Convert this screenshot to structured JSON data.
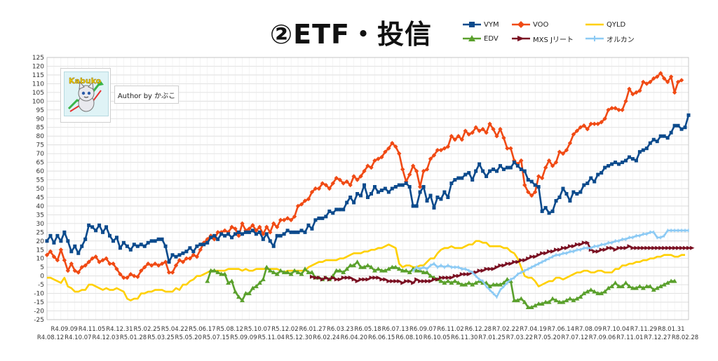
{
  "title": "②ETF・投信",
  "author_label": "Author by かぶこ",
  "logo_text": "Kabuko",
  "legend": [
    {
      "name": "VYM",
      "color": "#0b4a8c",
      "marker": "square"
    },
    {
      "name": "VOO",
      "color": "#f04a14",
      "marker": "diamond"
    },
    {
      "name": "QYLD",
      "color": "#ffd000",
      "marker": "none"
    },
    {
      "name": "EDV",
      "color": "#5aa02c",
      "marker": "triangle"
    },
    {
      "name": "MXS Jリート",
      "color": "#7a1022",
      "marker": "arrow"
    },
    {
      "name": "オルカン",
      "color": "#8ccaf4",
      "marker": "plus"
    }
  ],
  "chart_data": {
    "type": "line",
    "title": "②ETF・投信",
    "xlabel": "",
    "ylabel": "",
    "ylim": [
      -25,
      125
    ],
    "yticks": [
      125,
      120,
      115,
      110,
      105,
      100,
      95,
      90,
      85,
      80,
      75,
      70,
      65,
      60,
      55,
      50,
      45,
      40,
      35,
      30,
      25,
      20,
      15,
      10,
      5,
      0,
      -5,
      -10,
      -15,
      -20,
      -25
    ],
    "grid": true,
    "legend_position": "top-right",
    "x_labels_row1": [
      "R4.09.09",
      "R4.11.05",
      "R4.12.31",
      "R5.02.25",
      "R5.04.22",
      "R5.06.17",
      "R5.08.12",
      "R5.10.07",
      "R5.12.02",
      "R6.01.27",
      "R6.03.23",
      "R6.05.18",
      "R6.07.13",
      "R6.09.07",
      "R6.11.02",
      "R6.12.28",
      "R7.02.22",
      "R7.04.19",
      "R7.06.14",
      "R7.08.09",
      "R7.10.04",
      "R7.11.29",
      "R8.01.31"
    ],
    "x_labels_row2": [
      "R4.08.12",
      "R4.10.07",
      "R4.12.03",
      "R5.01.28",
      "R5.03.25",
      "R5.05.20",
      "R5.07.15",
      "R5.09.09",
      "R5.11.04",
      "R5.12.30",
      "R6.02.24",
      "R6.04.20",
      "R6.06.15",
      "R6.08.10",
      "R6.10.05",
      "R6.11.30",
      "R7.01.25",
      "R7.03.22",
      "R7.05.20",
      "R7.07.12",
      "R7.09.06",
      "R7.11.01",
      "R7.12.27",
      "R8.02.28"
    ],
    "n_points": 185,
    "series": [
      {
        "name": "VYM",
        "start_index": 0,
        "values": [
          20,
          23,
          19,
          23,
          20,
          25,
          20,
          14,
          17,
          13,
          17,
          21,
          29,
          28,
          26,
          29,
          25,
          28,
          23,
          20,
          22,
          16,
          19,
          17,
          15,
          18,
          17,
          18,
          17,
          19,
          20,
          20,
          21,
          21,
          17,
          8,
          12,
          11,
          12,
          13,
          14,
          16,
          14,
          17,
          18,
          18,
          19,
          22,
          23,
          21,
          24,
          23,
          24,
          22,
          24,
          25,
          24,
          25,
          25,
          26,
          24,
          25,
          21,
          24,
          20,
          17,
          23,
          23,
          24,
          26,
          25,
          25,
          25,
          26,
          25,
          29,
          27,
          32,
          33,
          33,
          34,
          37,
          36,
          38,
          38,
          38,
          42,
          45,
          42,
          47,
          46,
          52,
          45,
          47,
          51,
          48,
          49,
          50,
          48,
          50,
          51,
          52,
          52,
          53,
          51,
          40,
          40,
          48,
          51,
          43,
          46,
          39,
          45,
          44,
          48,
          45,
          53,
          55,
          56,
          56,
          58,
          59,
          55,
          60,
          64,
          60,
          57,
          60,
          61,
          60,
          63,
          61,
          62,
          62,
          65,
          63,
          61,
          60,
          55,
          54,
          52,
          51,
          37,
          39,
          36,
          37,
          43,
          45,
          50,
          47,
          43,
          48,
          47,
          48,
          52,
          53,
          56,
          54,
          58,
          59,
          62,
          63,
          64,
          65,
          64,
          65,
          66,
          68,
          67,
          66,
          71,
          72,
          73,
          76,
          78,
          77,
          80,
          80,
          79,
          82,
          86,
          86,
          84,
          85,
          92
        ]
      },
      {
        "name": "VOO",
        "start_index": 0,
        "values": [
          12,
          14,
          11,
          9,
          15,
          9,
          3,
          7,
          3,
          2,
          5,
          6,
          8,
          10,
          11,
          8,
          9,
          10,
          7,
          7,
          4,
          1,
          -1,
          -1,
          1,
          0,
          -0.5,
          3,
          5,
          7,
          6,
          7,
          6,
          7,
          8,
          2,
          2,
          6,
          9,
          8,
          10,
          10,
          12,
          11,
          15,
          19,
          21,
          23,
          21,
          25,
          25,
          26,
          25,
          28,
          27,
          23,
          30,
          26,
          27,
          29,
          26,
          28,
          24,
          28,
          25,
          30,
          28,
          32,
          32,
          33,
          32,
          34,
          40,
          41,
          43,
          44,
          48,
          50,
          50,
          53,
          52,
          50,
          53,
          56,
          55,
          53,
          54,
          52,
          57,
          55,
          57,
          60,
          63,
          62,
          66,
          67,
          68,
          71,
          73,
          76,
          74,
          70,
          61,
          54,
          58,
          63,
          60,
          51,
          60,
          61,
          67,
          69,
          72,
          72,
          73,
          74,
          80,
          78,
          80,
          78,
          83,
          81,
          82,
          85,
          83,
          84,
          82,
          87,
          84,
          80,
          84,
          79,
          73,
          73,
          66,
          64,
          66,
          52,
          48,
          46,
          48,
          57,
          56,
          62,
          66,
          63,
          65,
          71,
          70,
          72,
          76,
          81,
          83,
          85,
          86,
          84,
          87,
          87,
          87,
          88,
          90,
          95,
          96,
          96,
          95,
          95,
          100,
          107,
          104,
          105,
          106,
          111,
          110,
          111,
          113,
          114,
          116,
          113,
          111,
          114,
          105,
          111,
          112
        ]
      },
      {
        "name": "QYLD",
        "start_index": 0,
        "values": [
          -1,
          -1,
          -2,
          -3,
          -4,
          -1,
          -6,
          -7,
          -9,
          -9,
          -8,
          -8,
          -5,
          -5,
          -6,
          -7,
          -8,
          -7,
          -8,
          -8,
          -7,
          -8,
          -9,
          -13,
          -14,
          -13,
          -13,
          -10,
          -10,
          -9,
          -9,
          -8,
          -8,
          -8,
          -9,
          -9,
          -9,
          -7,
          -8,
          -5,
          -5,
          -3,
          -2,
          0,
          0,
          1,
          2,
          3,
          3,
          3,
          3,
          3,
          4,
          4,
          4,
          4,
          3,
          4,
          3,
          3,
          4,
          4,
          4,
          4,
          4,
          4,
          4,
          3,
          2,
          3,
          3,
          3,
          3,
          3,
          3,
          5,
          6,
          7,
          8,
          8,
          9,
          9,
          9,
          9,
          10,
          10,
          11,
          12,
          13,
          13,
          13,
          14,
          14,
          15,
          15,
          16,
          16,
          17,
          18,
          17,
          16,
          7,
          5,
          6,
          6,
          5,
          5,
          6,
          6,
          8,
          10,
          10,
          13,
          15,
          16,
          16,
          17,
          16,
          16,
          16,
          17,
          18,
          18,
          20,
          20,
          19,
          19,
          17,
          17,
          17,
          17,
          16,
          16,
          14,
          13,
          10,
          5,
          0,
          -1,
          -1,
          -3,
          -6,
          -5,
          -4,
          -3,
          -3,
          -1,
          -1,
          -2,
          -1,
          0,
          1,
          2,
          2,
          3,
          3,
          2,
          2,
          3,
          3,
          2,
          2,
          2,
          4,
          4,
          6,
          6,
          7,
          7,
          8,
          8,
          9,
          9,
          10,
          10,
          11,
          11,
          12,
          12,
          12,
          11,
          11,
          12,
          12
        ]
      },
      {
        "name": "EDV",
        "start_index": 46,
        "values": [
          -3,
          3,
          3,
          2,
          1,
          1,
          -4,
          -3,
          -9,
          -12,
          -14,
          -10,
          -10,
          -7,
          -6,
          -4,
          -2,
          5,
          3,
          2,
          1,
          3,
          2,
          2,
          1,
          3,
          2,
          1,
          4,
          2,
          2,
          -1,
          -1,
          -2,
          -1,
          -2,
          0,
          3,
          3,
          2,
          4,
          6,
          6,
          8,
          5,
          5,
          6,
          5,
          3,
          4,
          3,
          3,
          4,
          5,
          5,
          4,
          3,
          3,
          2,
          4,
          3,
          3,
          2,
          2,
          0,
          -1,
          -2,
          -3,
          -4,
          -3,
          -4,
          -3,
          -4,
          -5,
          -5,
          -4,
          -5,
          -4,
          -3,
          -4,
          -4,
          -6,
          -5,
          -5,
          -5,
          -4,
          -2,
          -3,
          -14,
          -14,
          -13,
          -15,
          -18,
          -18,
          -17,
          -16,
          -16,
          -15,
          -15,
          -13,
          -14,
          -15,
          -15,
          -14,
          -13,
          -14,
          -13,
          -12,
          -10,
          -9,
          -8,
          -9,
          -10,
          -10,
          -9,
          -7,
          -6,
          -4,
          -6,
          -6,
          -4,
          -6,
          -7,
          -7,
          -6,
          -7,
          -6,
          -6,
          -8,
          -7,
          -6,
          -5,
          -4,
          -3,
          -3
        ]
      },
      {
        "name": "MXS Jリート",
        "start_index": 76,
        "values": [
          -0.5,
          -1,
          -1,
          -2,
          -1,
          -2,
          -1,
          -2,
          -2,
          -1,
          -1,
          -1,
          -2,
          -3,
          -2,
          -2,
          -2,
          -1,
          -1,
          -1,
          -2,
          -2,
          -3,
          -3,
          -3,
          -3,
          -4,
          -3,
          -3,
          -4,
          -2,
          -3,
          -3,
          -3,
          -3,
          -2,
          -2,
          -1,
          -1,
          -1,
          -1,
          0,
          0,
          1,
          1,
          1,
          2,
          2,
          3,
          3,
          4,
          4,
          4,
          5,
          6,
          6,
          7,
          7,
          8,
          8,
          9,
          9,
          10,
          11,
          11,
          12,
          13,
          13,
          14,
          14,
          15,
          15,
          16,
          16,
          17,
          17,
          18,
          18,
          19,
          19,
          15,
          14,
          14,
          15,
          15,
          16,
          16,
          15,
          16,
          16,
          16,
          17,
          16,
          16,
          16,
          16,
          16,
          16,
          16,
          16,
          16,
          16,
          16,
          16,
          16,
          16,
          16,
          16,
          16,
          16
        ]
      },
      {
        "name": "オルカン",
        "start_index": 105,
        "values": [
          3,
          5,
          4,
          5,
          4,
          6,
          7,
          5,
          6,
          5,
          6,
          5,
          5,
          5,
          4,
          4,
          3,
          2,
          0,
          -2,
          -3,
          -6,
          -8,
          -10,
          -12,
          -8,
          -6,
          -4,
          -2,
          -1,
          1,
          2,
          3,
          4,
          5,
          6,
          7,
          8,
          9,
          10,
          11,
          12,
          12,
          13,
          13,
          14,
          14,
          15,
          15,
          16,
          16,
          16,
          17,
          17,
          18,
          18,
          19,
          19,
          20,
          20,
          21,
          21,
          22,
          22,
          23,
          23,
          24,
          24,
          25,
          25,
          22,
          22,
          23,
          26,
          26,
          26,
          26,
          26,
          26,
          26
        ]
      }
    ]
  }
}
